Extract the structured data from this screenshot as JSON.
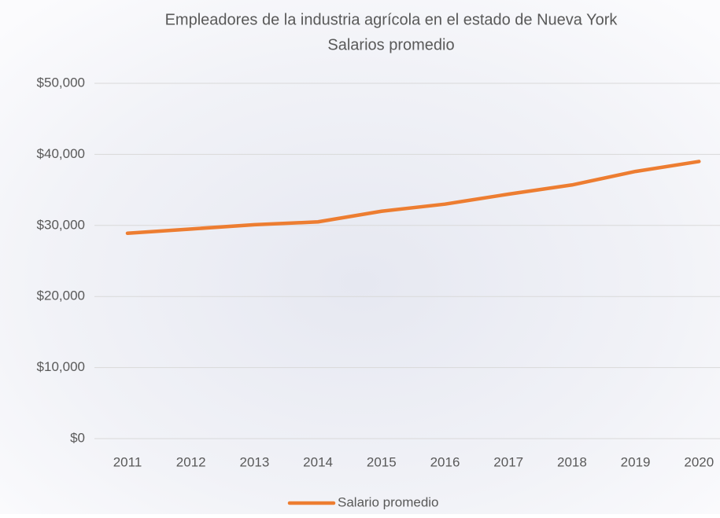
{
  "chart_data": {
    "type": "line",
    "title": "Empleadores de la industria agrícola en el estado de Nueva York",
    "subtitle": "Salarios promedio",
    "categories": [
      "2011",
      "2012",
      "2013",
      "2014",
      "2015",
      "2016",
      "2017",
      "2018",
      "2019",
      "2020"
    ],
    "series": [
      {
        "name": "Salario promedio",
        "color": "#ed7d31",
        "values": [
          28900,
          29500,
          30100,
          30500,
          32000,
          33000,
          34400,
          35700,
          37600,
          39000
        ]
      }
    ],
    "ylim": [
      0,
      50000
    ],
    "yticks": [
      {
        "value": 0,
        "label": "$0"
      },
      {
        "value": 10000,
        "label": "$10,000"
      },
      {
        "value": 20000,
        "label": "$20,000"
      },
      {
        "value": 30000,
        "label": "$30,000"
      },
      {
        "value": 40000,
        "label": "$40,000"
      },
      {
        "value": 50000,
        "label": "$50,000"
      }
    ],
    "grid": true,
    "legend": "bottom"
  }
}
